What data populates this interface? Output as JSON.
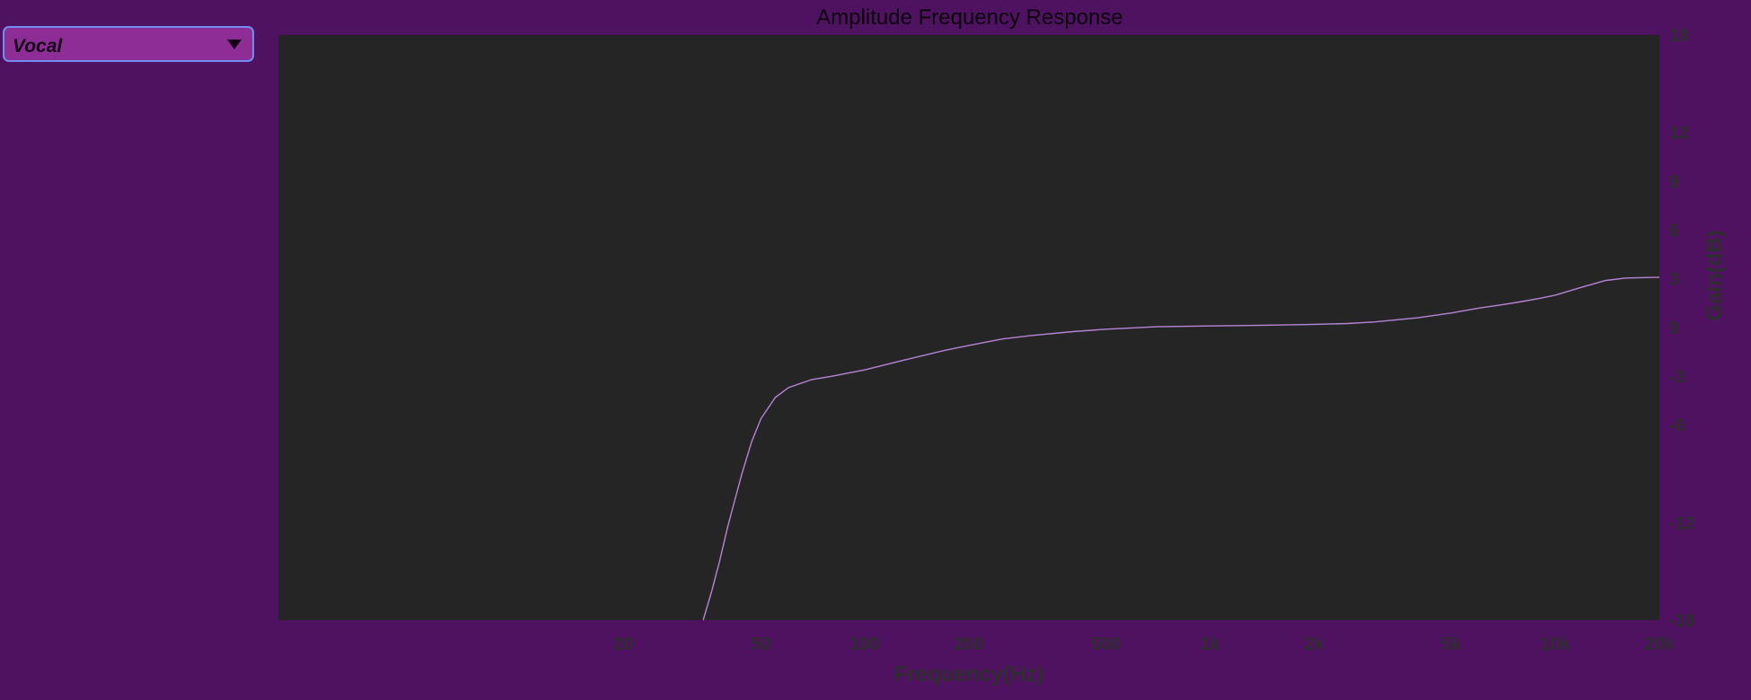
{
  "preset_selector": {
    "selected": "Vocal",
    "icon": "triangle-down-icon"
  },
  "chart_data": {
    "type": "line",
    "title": "Amplitude Frequency Response",
    "xlabel": "Frequency(Hz)",
    "ylabel": "Gain(dB)",
    "x_scale": "log",
    "xlim": [
      2,
      20000
    ],
    "ylim": [
      -18,
      18
    ],
    "x_ticks": [
      {
        "value": 20,
        "label": "20"
      },
      {
        "value": 50,
        "label": "50"
      },
      {
        "value": 100,
        "label": "100"
      },
      {
        "value": 200,
        "label": "200"
      },
      {
        "value": 500,
        "label": "500"
      },
      {
        "value": 1000,
        "label": "1k"
      },
      {
        "value": 2000,
        "label": "2k"
      },
      {
        "value": 5000,
        "label": "5k"
      },
      {
        "value": 10000,
        "label": "10k"
      },
      {
        "value": 20000,
        "label": "20k"
      }
    ],
    "y_ticks": [
      {
        "value": 18,
        "label": "18"
      },
      {
        "value": 12,
        "label": "12"
      },
      {
        "value": 9,
        "label": "9"
      },
      {
        "value": 6,
        "label": "6"
      },
      {
        "value": 3,
        "label": "3"
      },
      {
        "value": 0,
        "label": "0"
      },
      {
        "value": -3,
        "label": "-3"
      },
      {
        "value": -6,
        "label": "-6"
      },
      {
        "value": -12,
        "label": "-12"
      },
      {
        "value": -18,
        "label": "-18"
      }
    ],
    "grid": false,
    "series": [
      {
        "color": "#b784d6",
        "x": [
          34,
          36,
          38,
          40,
          42,
          44,
          47,
          50,
          55,
          60,
          70,
          80,
          100,
          130,
          170,
          200,
          250,
          300,
          400,
          500,
          700,
          1000,
          1500,
          2000,
          2500,
          3000,
          4000,
          5000,
          6000,
          7000,
          8000,
          9000,
          10000,
          12000,
          14000,
          16000,
          20000
        ],
        "y": [
          -18,
          -16.2,
          -14.3,
          -12.3,
          -10.6,
          -9.0,
          -7.0,
          -5.6,
          -4.3,
          -3.7,
          -3.2,
          -3.0,
          -2.6,
          -2.0,
          -1.4,
          -1.1,
          -0.7,
          -0.5,
          -0.25,
          -0.1,
          0.05,
          0.1,
          0.15,
          0.2,
          0.25,
          0.35,
          0.6,
          0.9,
          1.2,
          1.4,
          1.6,
          1.8,
          2.0,
          2.5,
          2.9,
          3.05,
          3.1
        ]
      }
    ]
  },
  "colors": {
    "background": "#4f1260",
    "plot_background": "#252525",
    "curve": "#b784d6",
    "selector_fill": "#8e2d96",
    "selector_border": "#6f8ef0",
    "axis_text": "#2e2e2e"
  }
}
